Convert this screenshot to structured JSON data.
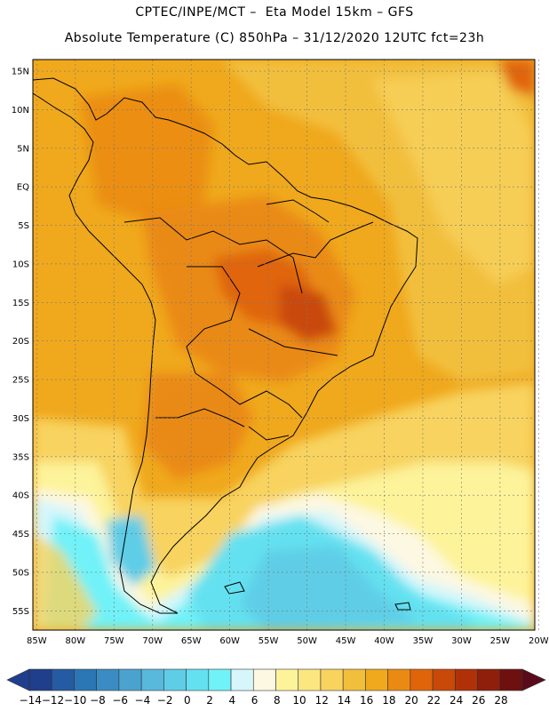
{
  "header": {
    "title_line1": "CPTEC/INPE/MCT –  Eta Model 15km – GFS",
    "title_line2": "Absolute Temperature (C) 850hPa – 31/12/2020 12UTC fct=23h"
  },
  "map": {
    "lat_labels": [
      "15N",
      "10N",
      "5N",
      "EQ",
      "5S",
      "10S",
      "15S",
      "20S",
      "25S",
      "30S",
      "35S",
      "40S",
      "45S",
      "50S",
      "55S"
    ],
    "lon_labels": [
      "85W",
      "80W",
      "75W",
      "70W",
      "65W",
      "60W",
      "55W",
      "50W",
      "45W",
      "40W",
      "35W",
      "30W",
      "25W",
      "20W"
    ],
    "lat_values": [
      15,
      10,
      5,
      0,
      -5,
      -10,
      -15,
      -20,
      -25,
      -30,
      -35,
      -40,
      -45,
      -50,
      -55
    ],
    "lon_values": [
      -85,
      -80,
      -75,
      -70,
      -65,
      -60,
      -55,
      -50,
      -45,
      -40,
      -35,
      -30,
      -25,
      -20
    ],
    "extent": {
      "lon_min": -85.5,
      "lon_max": -20.5,
      "lat_min": -57.5,
      "lat_max": 16.5
    }
  },
  "colorbar": {
    "labels": [
      "-14",
      "-12",
      "-10",
      "-8",
      "-6",
      "-4",
      "-2",
      "0",
      "2",
      "4",
      "6",
      "8",
      "10",
      "12",
      "14",
      "16",
      "18",
      "20",
      "22",
      "24",
      "26",
      "28"
    ],
    "colors": [
      "#1f3f8c",
      "#245ba3",
      "#2b77b5",
      "#3a8cc2",
      "#4aa3cf",
      "#58b9dc",
      "#5fcde6",
      "#64e1f0",
      "#6ff2f8",
      "#d6f6fb",
      "#fdf8e2",
      "#fdf39a",
      "#fbe680",
      "#f8d35e",
      "#f2bf3c",
      "#f0a81c",
      "#ea8a12",
      "#e0650a",
      "#c94a08",
      "#b03007",
      "#8f1e0a",
      "#6e1010"
    ]
  }
}
